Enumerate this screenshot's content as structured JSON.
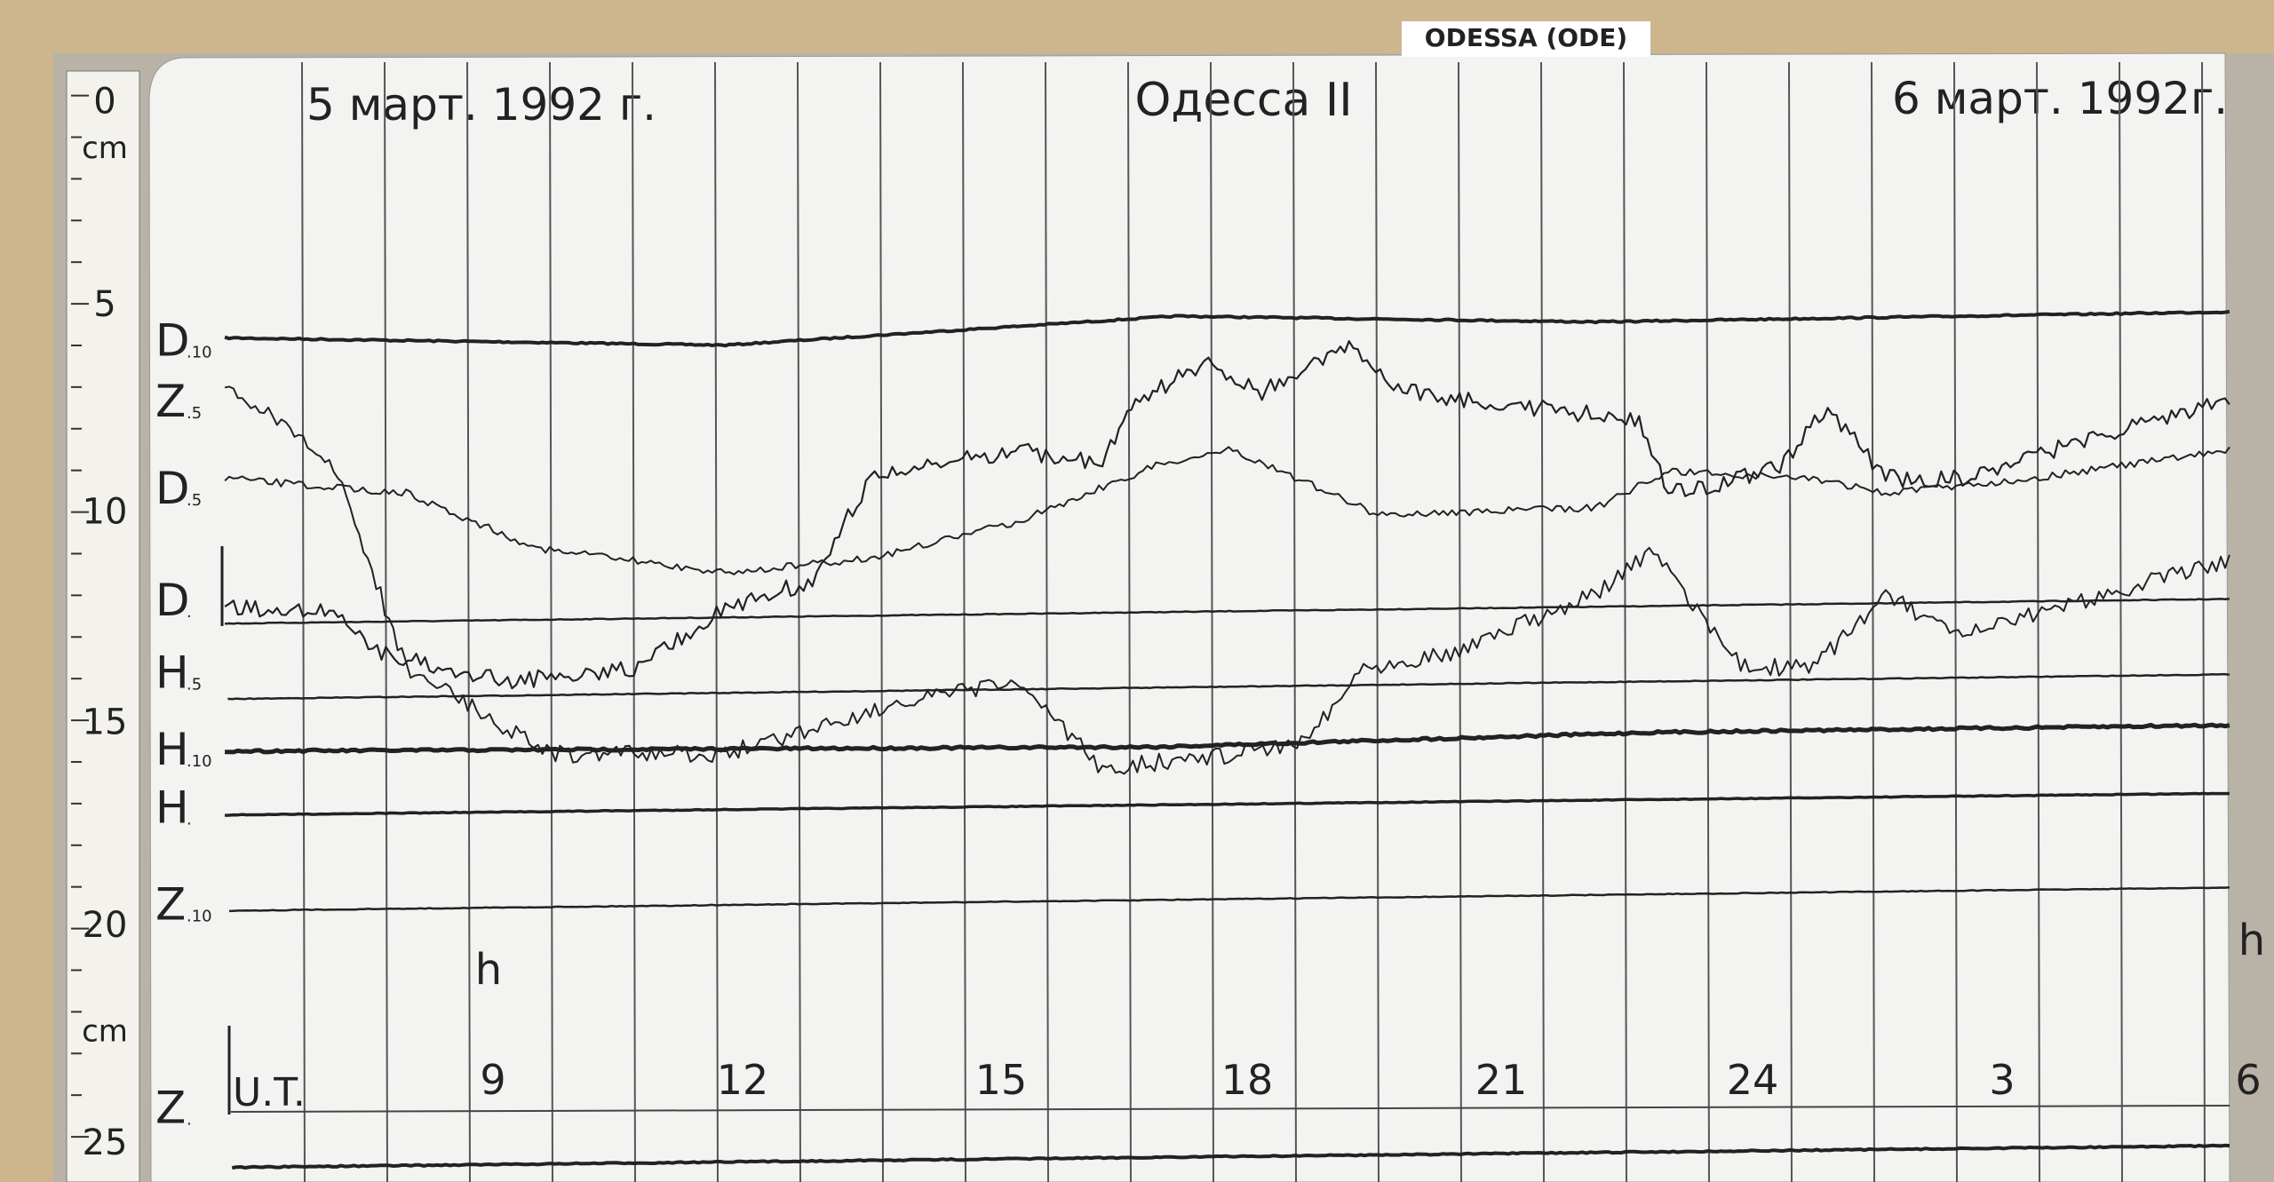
{
  "station_label": "ODESSA (ODE)",
  "header": {
    "date_left": "5 март. 1992 г.",
    "station": "Одесса II",
    "date_right": "6 март. 1992г."
  },
  "scale": [
    {
      "text": "0",
      "y": 0
    },
    {
      "text": "cm",
      "y": 1
    },
    {
      "text": "5",
      "y": 2
    },
    {
      "text": "10",
      "y": 3
    },
    {
      "text": "15",
      "y": 4
    },
    {
      "text": "20",
      "y": 5
    },
    {
      "text": "cm",
      "y": 6
    },
    {
      "text": "25",
      "y": 7
    }
  ],
  "traces": [
    {
      "label": "D",
      "sub": ".10"
    },
    {
      "label": "Z",
      "sub": ".5"
    },
    {
      "label": "D",
      "sub": ".5"
    },
    {
      "label": "D",
      "sub": "."
    },
    {
      "label": "H",
      "sub": ".5"
    },
    {
      "label": "H",
      "sub": ".10"
    },
    {
      "label": "H",
      "sub": "."
    },
    {
      "label": "Z",
      "sub": ".10"
    },
    {
      "label": "Z",
      "sub": "."
    }
  ],
  "time_axis": {
    "unit_label": "U.T.",
    "hours": [
      "9",
      "12",
      "15",
      "18",
      "21",
      "24",
      "3",
      "6"
    ],
    "hour_mark_left": "h",
    "hour_mark_right": "h"
  }
}
